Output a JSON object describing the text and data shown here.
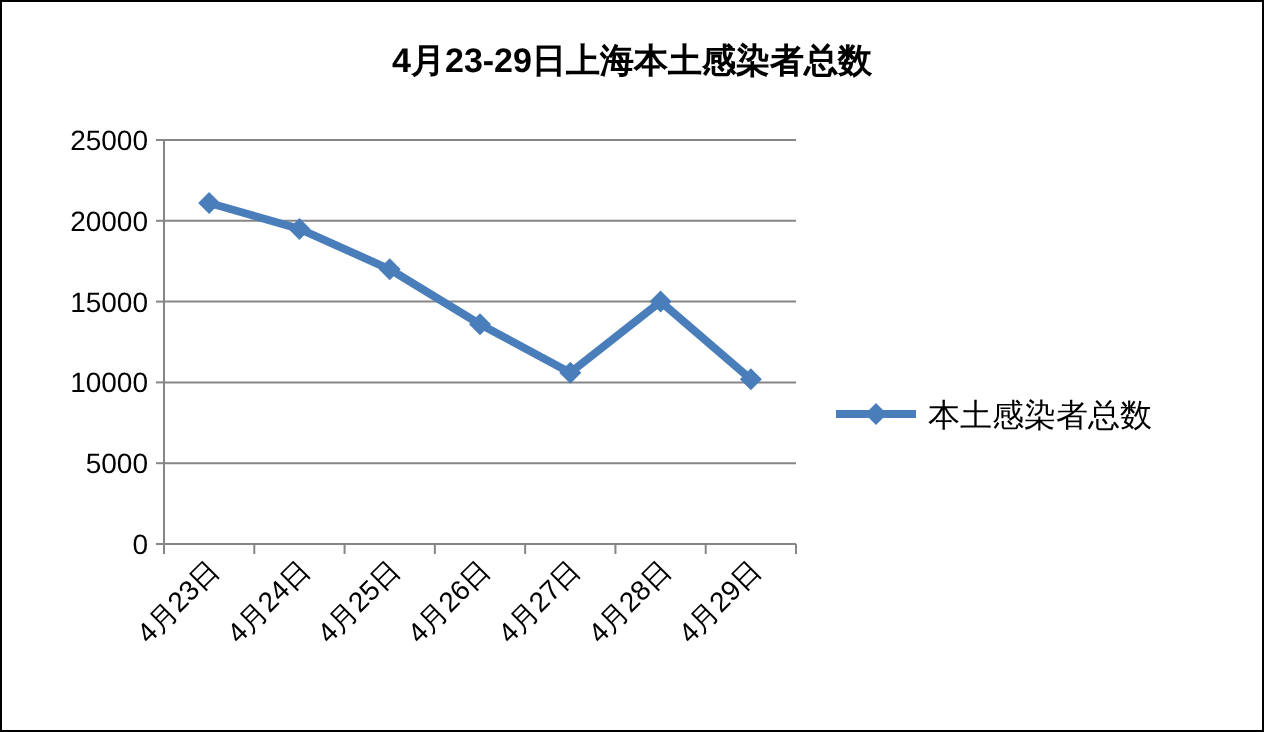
{
  "chart_data": {
    "type": "line",
    "title": "4月23-29日上海本土感染者总数",
    "categories": [
      "4月23日",
      "4月24日",
      "4月25日",
      "4月26日",
      "4月27日",
      "4月28日",
      "4月29日"
    ],
    "series": [
      {
        "name": "本土感染者总数",
        "color": "#4a7ebb",
        "values": [
          21100,
          19500,
          17000,
          13600,
          10600,
          15000,
          10200
        ]
      }
    ],
    "ylim": [
      0,
      25000
    ],
    "yticks": [
      0,
      5000,
      10000,
      15000,
      20000,
      25000
    ],
    "grid": "y",
    "legend": "right",
    "marker": "diamond",
    "line_style": "solid"
  }
}
